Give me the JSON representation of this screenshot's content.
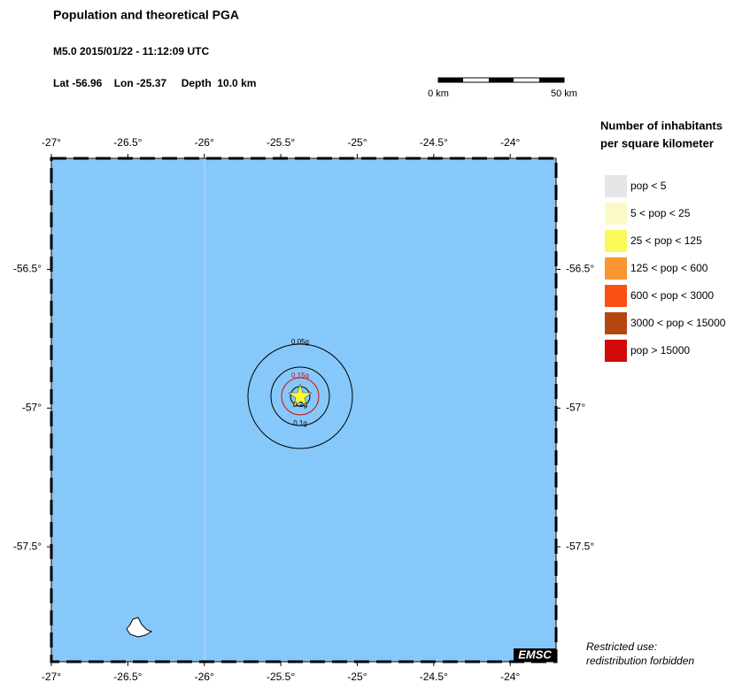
{
  "header": {
    "title": "Population and theoretical PGA",
    "event": "M5.0  2015/01/22 - 11:12:09 UTC",
    "location": "Lat -56.96    Lon -25.37     Depth  10.0 km"
  },
  "scale_bar": {
    "start": "0 km",
    "end": "50 km"
  },
  "map": {
    "xlim": [
      -27,
      -23.7
    ],
    "ylim": [
      -57.914,
      -56.1
    ],
    "xticks": [
      {
        "value": -27,
        "label": "-27°"
      },
      {
        "value": -26.5,
        "label": "-26.5°"
      },
      {
        "value": -26,
        "label": "-26°"
      },
      {
        "value": -25.5,
        "label": "-25.5°"
      },
      {
        "value": -25,
        "label": "-25°"
      },
      {
        "value": -24.5,
        "label": "-24.5°"
      },
      {
        "value": -24,
        "label": "-24°"
      }
    ],
    "yticks": [
      {
        "value": -56.5,
        "label": "-56.5°"
      },
      {
        "value": -57,
        "label": "-57°"
      },
      {
        "value": -57.5,
        "label": "-57.5°"
      }
    ],
    "contours": [
      "0.05g",
      "0.1g",
      "0.15g",
      "0.2g"
    ],
    "logo": "EMSC"
  },
  "legend": {
    "title": [
      "Number of inhabitants",
      "per square kilometer"
    ],
    "items": [
      {
        "label": "pop < 5",
        "color": "#e6e6e6"
      },
      {
        "label": "5 < pop < 25",
        "color": "#fafac8"
      },
      {
        "label": "25 < pop < 125",
        "color": "#fafa5a"
      },
      {
        "label": "125 < pop < 600",
        "color": "#fa9632"
      },
      {
        "label": "600 < pop < 3000",
        "color": "#fa5014"
      },
      {
        "label": "3000 < pop < 15000",
        "color": "#b4460f"
      },
      {
        "label": "pop > 15000",
        "color": "#d20a0a"
      }
    ]
  },
  "notice": [
    "Restricted use:",
    "redistribution forbidden"
  ]
}
